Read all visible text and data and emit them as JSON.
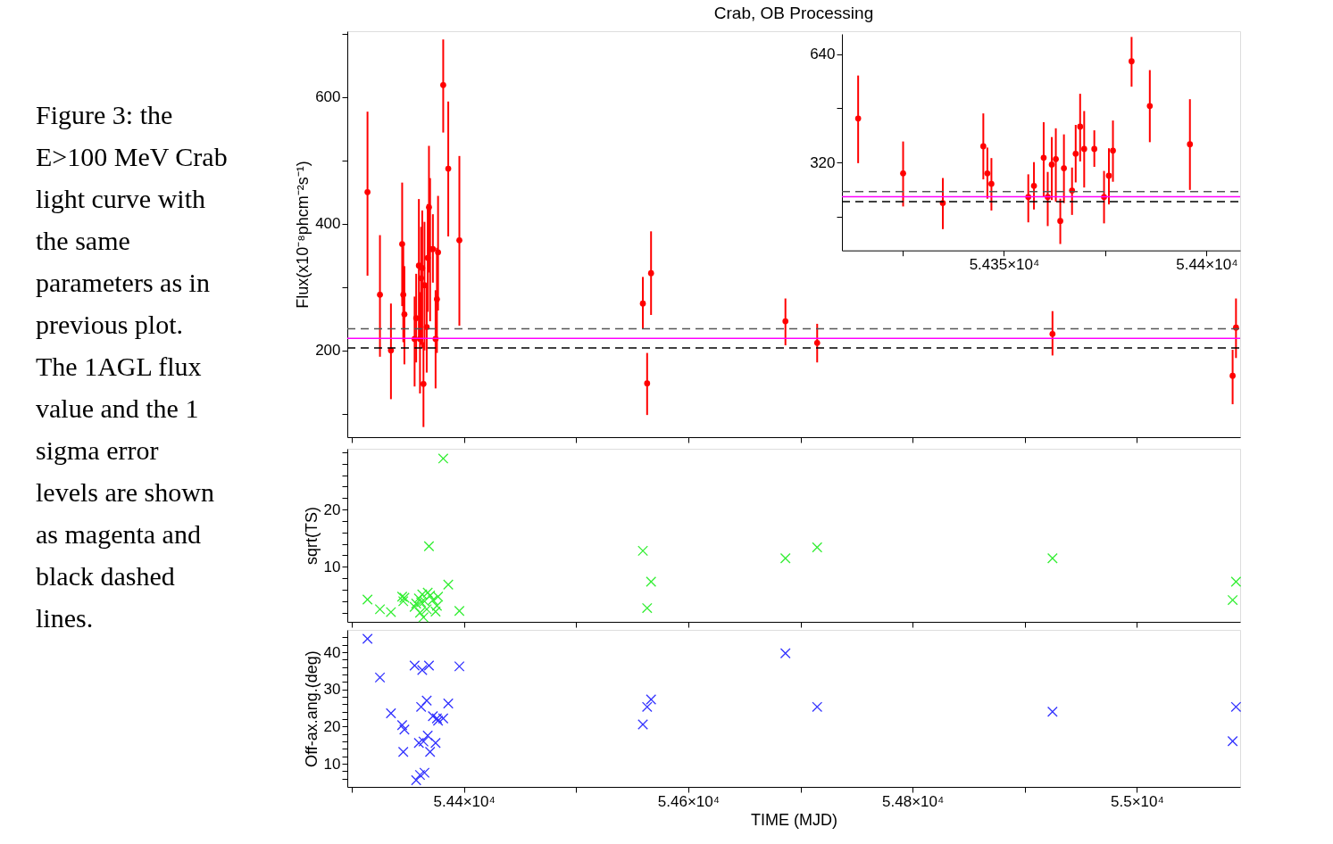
{
  "chart_data": [
    {
      "type": "scatter",
      "title": "Crab, OB Processing",
      "ylabel": "Flux(x10⁻⁸phcm⁻²s⁻¹)",
      "annotations": [
        "Figure 3: the E>100 MeV Crab light curve with the same parameters as in previous plot. The 1AGL flux value and the 1 sigma error levels are shown as magenta and black dashed lines."
      ],
      "x": [
        54314.0,
        54325.1,
        54334.9,
        54344.9,
        54345.9,
        54346.9,
        54356.0,
        54357.4,
        54359.8,
        54360.8,
        54361.8,
        54362.8,
        54363.9,
        54364.8,
        54366.8,
        54367.7,
        54368.8,
        54369.8,
        54372.3,
        54374.7,
        54375.9,
        54376.9,
        54381.5,
        54386.0,
        54395.9,
        54559.5,
        54563.3,
        54566.8,
        54686.6,
        54714.9,
        54924.7,
        55085.3,
        55088.3
      ],
      "series": [
        {
          "color": "#ff0000",
          "values": [
            450,
            288,
            200,
            368,
            288,
            257,
            218,
            251,
            334,
            218,
            314,
            330,
            147,
            303,
            237,
            346,
            426,
            360,
            360,
            218,
            281,
            355,
            619,
            487,
            374,
            274,
            148,
            322,
            246,
            212,
            226,
            160,
            236
          ],
          "errors": [
            [
              318,
              577
            ],
            [
              190,
              382
            ],
            [
              123,
              274
            ],
            [
              270,
              465
            ],
            [
              213,
              364
            ],
            [
              178,
              333
            ],
            [
              143,
              285
            ],
            [
              181,
              321
            ],
            [
              218,
              439
            ],
            [
              132,
              292
            ],
            [
              209,
              395
            ],
            [
              204,
              421
            ],
            [
              79,
              213
            ],
            [
              200,
              403
            ],
            [
              165,
              305
            ],
            [
              261,
              431
            ],
            [
              323,
              523
            ],
            [
              246,
              472
            ],
            [
              307,
              415
            ],
            [
              140,
              295
            ],
            [
              196,
              362
            ],
            [
              263,
              444
            ],
            [
              544,
              691
            ],
            [
              380,
              593
            ],
            [
              239,
              507
            ],
            [
              234,
              316
            ],
            [
              98,
              196
            ],
            [
              256,
              388
            ],
            [
              208,
              282
            ],
            [
              181,
              242
            ],
            [
              192,
              262
            ],
            [
              115,
              201
            ],
            [
              188,
              282
            ]
          ]
        }
      ],
      "xlim": [
        54296,
        55092
      ],
      "xticks": [
        {
          "value": 54300,
          "label": null
        },
        {
          "value": 54400,
          "label": null
        },
        {
          "value": 54500,
          "label": null
        },
        {
          "value": 54600,
          "label": null
        },
        {
          "value": 54700,
          "label": null
        },
        {
          "value": 54800,
          "label": null
        },
        {
          "value": 54900,
          "label": null
        },
        {
          "value": 55000,
          "label": null
        }
      ],
      "ylim": [
        63,
        704
      ],
      "yticks": [
        {
          "value": 100,
          "label": null
        },
        200,
        {
          "value": 300,
          "label": null
        },
        400,
        {
          "value": 500,
          "label": null
        },
        600,
        {
          "value": 700,
          "label": null
        }
      ],
      "ref_lines": [
        {
          "axis": "y",
          "value": 219,
          "color": "#ff00ff",
          "line_style": "solid"
        },
        {
          "axis": "y",
          "value": 234,
          "color": "#555555",
          "line_style": "dashed"
        },
        {
          "axis": "y",
          "value": 204,
          "color": "#000000",
          "line_style": "dashed"
        }
      ],
      "marker": "circle",
      "grid": false,
      "tick_labels": "y"
    },
    {
      "type": "scatter",
      "ylabel": "sqrt(TS)",
      "x": [
        54314.0,
        54325.1,
        54334.9,
        54344.9,
        54345.9,
        54346.9,
        54356.0,
        54357.4,
        54359.8,
        54360.8,
        54361.8,
        54362.8,
        54363.9,
        54364.8,
        54366.8,
        54367.7,
        54368.8,
        54369.8,
        54372.3,
        54374.7,
        54375.9,
        54376.9,
        54381.5,
        54386.0,
        54395.9,
        54559.5,
        54563.3,
        54566.8,
        54686.6,
        54714.9,
        54924.7,
        55085.3,
        55088.3
      ],
      "series": [
        {
          "color": "#33ee33",
          "values": [
            4.3,
            2.6,
            2.1,
            4.8,
            4.0,
            4.6,
            3.0,
            3.6,
            4.5,
            2.0,
            3.8,
            5.2,
            1.2,
            4.0,
            2.6,
            5.5,
            13.6,
            5.0,
            4.2,
            2.2,
            3.2,
            4.8,
            28.9,
            6.9,
            2.3,
            12.8,
            2.8,
            7.4,
            11.5,
            13.4,
            11.5,
            4.2,
            7.4
          ]
        }
      ],
      "xlim": [
        54296,
        55092
      ],
      "xticks": [
        {
          "value": 54300,
          "label": null
        },
        {
          "value": 54400,
          "label": null
        },
        {
          "value": 54500,
          "label": null
        },
        {
          "value": 54600,
          "label": null
        },
        {
          "value": 54700,
          "label": null
        },
        {
          "value": 54800,
          "label": null
        },
        {
          "value": 54900,
          "label": null
        },
        {
          "value": 55000,
          "label": null
        }
      ],
      "ylim": [
        0.4,
        30.6
      ],
      "yticks": [
        {
          "value": 2,
          "label": null
        },
        {
          "value": 4,
          "label": null
        },
        {
          "value": 6,
          "label": null
        },
        {
          "value": 8,
          "label": null
        },
        10,
        {
          "value": 12,
          "label": null
        },
        {
          "value": 14,
          "label": null
        },
        {
          "value": 16,
          "label": null
        },
        {
          "value": 18,
          "label": null
        },
        20,
        {
          "value": 22,
          "label": null
        },
        {
          "value": 24,
          "label": null
        },
        {
          "value": 26,
          "label": null
        },
        {
          "value": 28,
          "label": null
        },
        {
          "value": 30,
          "label": null
        }
      ],
      "marker": "cross",
      "grid": false,
      "tick_labels": "y"
    },
    {
      "type": "scatter",
      "ylabel": "Off-ax.ang.(deg)",
      "xlabel": "TIME (MJD)",
      "x": [
        54314.0,
        54325.1,
        54334.9,
        54344.9,
        54345.9,
        54346.9,
        54356.0,
        54357.4,
        54359.8,
        54360.8,
        54361.8,
        54362.8,
        54363.9,
        54364.8,
        54366.8,
        54367.7,
        54368.8,
        54369.8,
        54372.3,
        54374.7,
        54375.9,
        54376.9,
        54381.5,
        54386.0,
        54395.9,
        54559.5,
        54563.3,
        54566.8,
        54686.6,
        54714.9,
        54924.7,
        55085.3,
        55088.3
      ],
      "series": [
        {
          "color": "#3333ff",
          "values": [
            43.6,
            33.2,
            23.6,
            20.4,
            13.2,
            19.2,
            36.4,
            5.6,
            15.6,
            7.0,
            25.3,
            35.2,
            16.0,
            7.6,
            27.0,
            17.6,
            36.4,
            13.2,
            22.8,
            15.6,
            22.2,
            21.6,
            22.2,
            26.2,
            36.2,
            20.6,
            25.3,
            27.3,
            39.7,
            25.3,
            24.0,
            16.1,
            25.3
          ]
        }
      ],
      "xlim": [
        54296,
        55092
      ],
      "xticks": [
        {
          "value": 54300,
          "label": null
        },
        {
          "value": 54400,
          "label": "5.44×10⁴"
        },
        {
          "value": 54500,
          "label": null
        },
        {
          "value": 54600,
          "label": "5.46×10⁴"
        },
        {
          "value": 54700,
          "label": null
        },
        {
          "value": 54800,
          "label": "5.48×10⁴"
        },
        {
          "value": 54900,
          "label": null
        },
        {
          "value": 55000,
          "label": "5.5×10⁴"
        }
      ],
      "ylim": [
        3.8,
        46
      ],
      "yticks": [
        {
          "value": 6,
          "label": null
        },
        {
          "value": 8,
          "label": null
        },
        10,
        {
          "value": 12,
          "label": null
        },
        {
          "value": 14,
          "label": null
        },
        {
          "value": 16,
          "label": null
        },
        {
          "value": 18,
          "label": null
        },
        20,
        {
          "value": 22,
          "label": null
        },
        {
          "value": 24,
          "label": null
        },
        {
          "value": 26,
          "label": null
        },
        {
          "value": 28,
          "label": null
        },
        30,
        {
          "value": 32,
          "label": null
        },
        {
          "value": 34,
          "label": null
        },
        {
          "value": 36,
          "label": null
        },
        {
          "value": 38,
          "label": null
        },
        40,
        {
          "value": 42,
          "label": null
        },
        {
          "value": 44,
          "label": null
        }
      ],
      "marker": "cross",
      "grid": false
    },
    {
      "type": "scatter",
      "x": [
        54314.0,
        54325.1,
        54334.9,
        54344.9,
        54345.9,
        54346.9,
        54356.0,
        54357.4,
        54359.8,
        54360.8,
        54361.8,
        54362.8,
        54363.9,
        54364.8,
        54366.8,
        54367.7,
        54368.8,
        54369.8,
        54372.3,
        54374.7,
        54375.9,
        54376.9,
        54381.5,
        54386.0,
        54395.9
      ],
      "series": [
        {
          "color": "#ff0000",
          "values": [
            450,
            288,
            200,
            368,
            288,
            257,
            218,
            251,
            334,
            218,
            314,
            330,
            147,
            303,
            237,
            346,
            426,
            360,
            360,
            218,
            281,
            355,
            619,
            487,
            374
          ],
          "errors": [
            [
              318,
              577
            ],
            [
              190,
              382
            ],
            [
              123,
              274
            ],
            [
              270,
              465
            ],
            [
              213,
              364
            ],
            [
              178,
              333
            ],
            [
              143,
              285
            ],
            [
              181,
              321
            ],
            [
              218,
              439
            ],
            [
              132,
              292
            ],
            [
              209,
              395
            ],
            [
              204,
              421
            ],
            [
              79,
              213
            ],
            [
              200,
              403
            ],
            [
              165,
              305
            ],
            [
              261,
              431
            ],
            [
              323,
              523
            ],
            [
              246,
              472
            ],
            [
              307,
              415
            ],
            [
              140,
              295
            ],
            [
              196,
              362
            ],
            [
              263,
              444
            ],
            [
              544,
              691
            ],
            [
              380,
              593
            ],
            [
              239,
              507
            ]
          ]
        }
      ],
      "xlim": [
        54310,
        54408.3
      ],
      "xticks": [
        {
          "value": 54325,
          "label": null
        },
        {
          "value": 54350,
          "label": "5.435×10⁴"
        },
        {
          "value": 54375,
          "label": null
        },
        {
          "value": 54400,
          "label": "5.44×10⁴"
        }
      ],
      "ylim": [
        60,
        700
      ],
      "yticks": [
        {
          "value": 160,
          "label": null
        },
        320,
        {
          "value": 480,
          "label": null
        },
        640
      ],
      "ref_lines": [
        {
          "axis": "y",
          "value": 219,
          "color": "#ff00ff",
          "line_style": "solid"
        },
        {
          "axis": "y",
          "value": 234,
          "color": "#555555",
          "line_style": "dashed"
        },
        {
          "axis": "y",
          "value": 204,
          "color": "#000000",
          "line_style": "dashed"
        }
      ],
      "marker": "circle",
      "grid": false
    }
  ]
}
